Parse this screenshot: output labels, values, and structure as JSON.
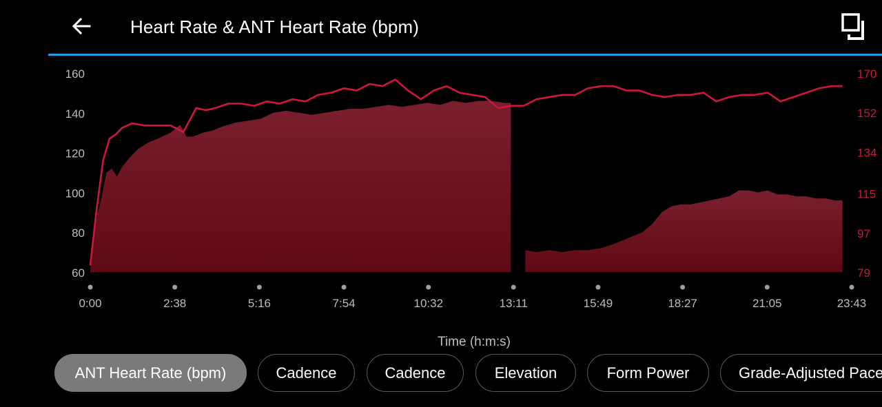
{
  "header": {
    "title": "Heart Rate & ANT Heart Rate (bpm)",
    "back_icon": "arrow-left-icon",
    "expand_icon": "fullscreen-icon"
  },
  "colors": {
    "accent": "#1e9be6",
    "line": "#d0153e",
    "area_top": "#7a1f2e",
    "area_bottom": "#5e0a14",
    "right_axis": "#d0153e"
  },
  "chart_data": {
    "type": "area",
    "xlabel": "Time (h:m:s)",
    "x_ticks": [
      "0:00",
      "2:38",
      "5:16",
      "7:54",
      "10:32",
      "13:11",
      "15:49",
      "18:27",
      "21:05",
      "23:43"
    ],
    "y_left": {
      "ticks": [
        60,
        80,
        100,
        120,
        140,
        160
      ],
      "range": [
        60,
        160
      ]
    },
    "y_right": {
      "ticks": [
        79,
        97,
        115,
        134,
        152,
        170
      ],
      "range": [
        79,
        170
      ]
    },
    "grid": false,
    "series": [
      {
        "axis": "left",
        "style": "area",
        "x": [
          0.0,
          0.17,
          0.33,
          0.5,
          0.67,
          0.83,
          1.0,
          1.2,
          1.5,
          1.8,
          2.1,
          2.5,
          2.8,
          3.0,
          3.2,
          3.5,
          3.8,
          4.1,
          4.5,
          4.9,
          5.3,
          5.7,
          6.1,
          6.5,
          6.9,
          7.3,
          7.7,
          8.1,
          8.5,
          8.9,
          9.3,
          9.7,
          10.1,
          10.5,
          10.9,
          11.3,
          11.7,
          12.1,
          12.5,
          12.9,
          13.1
        ],
        "values": [
          61,
          85,
          96,
          110,
          112,
          108,
          113,
          117,
          122,
          125,
          127,
          130,
          134,
          128,
          128,
          130,
          131,
          133,
          135,
          136,
          137,
          140,
          141,
          140,
          139,
          140,
          141,
          142,
          142,
          143,
          144,
          143,
          144,
          145,
          144,
          146,
          145,
          146,
          146,
          145,
          145
        ]
      },
      {
        "axis": "left",
        "style": "area",
        "x": [
          13.55,
          13.9,
          14.3,
          14.7,
          15.1,
          15.5,
          15.9,
          16.3,
          16.6,
          16.9,
          17.2,
          17.5,
          17.8,
          18.1,
          18.4,
          18.7,
          19.0,
          19.3,
          19.6,
          19.9,
          20.2,
          20.5,
          20.8,
          21.1,
          21.4,
          21.7,
          22.0,
          22.3,
          22.6,
          22.9,
          23.2,
          23.43
        ],
        "values": [
          71,
          70,
          71,
          70,
          71,
          71,
          72,
          74,
          76,
          78,
          80,
          84,
          90,
          93,
          94,
          94,
          95,
          96,
          97,
          98,
          101,
          101,
          100,
          101,
          99,
          99,
          98,
          98,
          97,
          97,
          96,
          96
        ]
      },
      {
        "axis": "right",
        "style": "line",
        "x": [
          0.0,
          0.2,
          0.4,
          0.6,
          0.8,
          1.0,
          1.3,
          1.7,
          2.1,
          2.5,
          2.9,
          3.3,
          3.6,
          3.9,
          4.3,
          4.7,
          5.1,
          5.5,
          5.9,
          6.3,
          6.7,
          7.1,
          7.5,
          7.9,
          8.3,
          8.7,
          9.1,
          9.5,
          9.9,
          10.3,
          10.7,
          11.1,
          11.5,
          11.9,
          12.3,
          12.7,
          13.1,
          13.5,
          13.9,
          14.3,
          14.7,
          15.1,
          15.5,
          15.9,
          16.3,
          16.7,
          17.1,
          17.5,
          17.9,
          18.3,
          18.7,
          19.1,
          19.5,
          19.9,
          20.3,
          20.7,
          21.1,
          21.5,
          21.9,
          22.3,
          22.7,
          23.1,
          23.43
        ],
        "values": [
          82,
          108,
          130,
          140,
          142,
          145,
          147,
          146,
          146,
          146,
          143,
          154,
          153,
          154,
          156,
          156,
          155,
          157,
          156,
          158,
          157,
          160,
          161,
          163,
          162,
          165,
          164,
          167,
          162,
          158,
          162,
          164,
          161,
          160,
          159,
          154,
          155,
          155,
          158,
          159,
          160,
          160,
          163,
          164,
          164,
          162,
          162,
          160,
          159,
          160,
          160,
          161,
          157,
          159,
          160,
          160,
          161,
          157,
          159,
          161,
          163,
          164,
          164
        ]
      }
    ]
  },
  "chips": [
    {
      "label": "ANT Heart Rate (bpm)",
      "selected": true
    },
    {
      "label": "Cadence",
      "selected": false
    },
    {
      "label": "Cadence",
      "selected": false
    },
    {
      "label": "Elevation",
      "selected": false
    },
    {
      "label": "Form Power",
      "selected": false
    },
    {
      "label": "Grade-Adjusted Pace",
      "selected": false
    }
  ]
}
